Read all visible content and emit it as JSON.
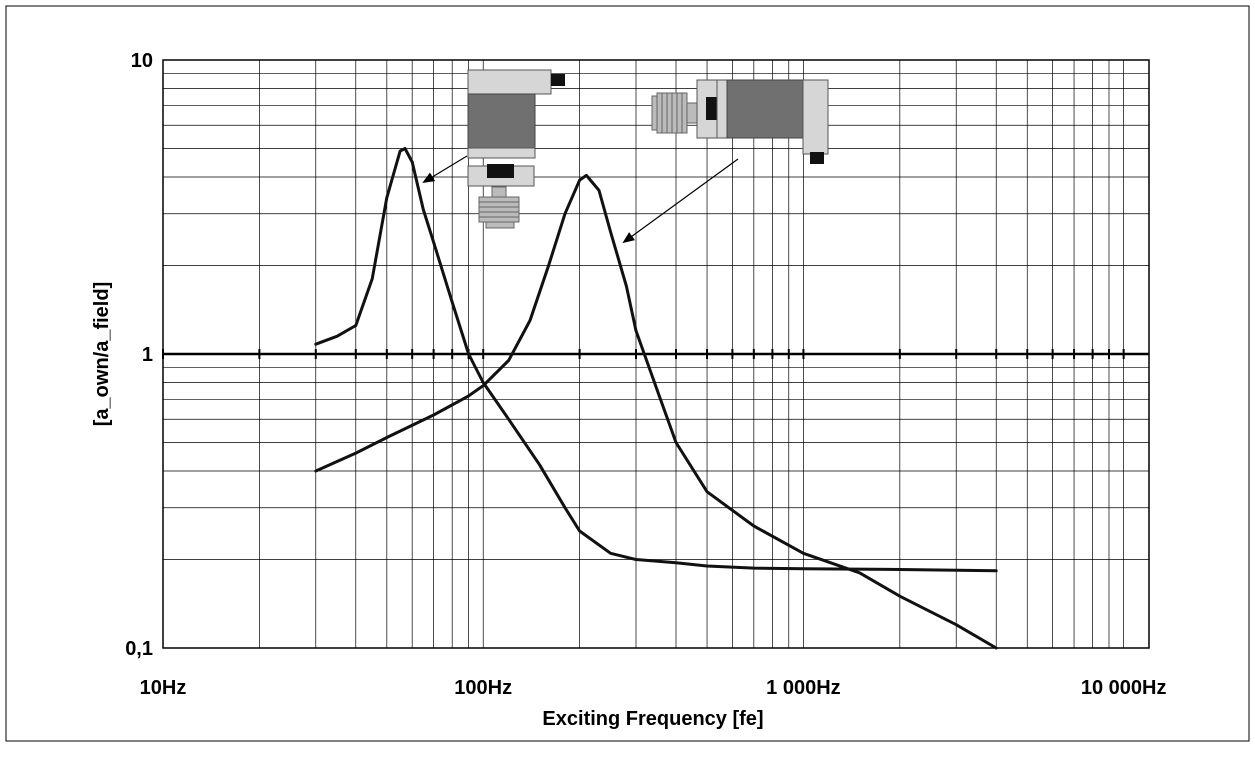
{
  "chart_data": {
    "type": "line",
    "title": "",
    "xlabel": "Exciting Frequency [fe]",
    "ylabel": "[a_own/a_field]",
    "x_scale": "log",
    "y_scale": "log",
    "xlim": [
      10,
      12000
    ],
    "ylim": [
      0.1,
      10
    ],
    "x_ticks": [
      {
        "value": 10,
        "label": "10Hz"
      },
      {
        "value": 100,
        "label": "100Hz"
      },
      {
        "value": 1000,
        "label": "1 000Hz"
      },
      {
        "value": 10000,
        "label": "10 000Hz"
      }
    ],
    "y_ticks": [
      {
        "value": 10,
        "label": "10"
      },
      {
        "value": 1,
        "label": "1"
      },
      {
        "value": 0.1,
        "label": "0,1"
      }
    ],
    "grid": true,
    "legend": "none",
    "series": [
      {
        "color": "#111111",
        "points": [
          [
            30,
            1.08
          ],
          [
            35,
            1.15
          ],
          [
            40,
            1.25
          ],
          [
            45,
            1.8
          ],
          [
            50,
            3.4
          ],
          [
            55,
            4.9
          ],
          [
            57,
            5.0
          ],
          [
            60,
            4.5
          ],
          [
            65,
            3.1
          ],
          [
            70,
            2.4
          ],
          [
            80,
            1.5
          ],
          [
            90,
            1.0
          ],
          [
            100,
            0.8
          ],
          [
            120,
            0.6
          ],
          [
            150,
            0.42
          ],
          [
            180,
            0.3
          ],
          [
            200,
            0.25
          ],
          [
            250,
            0.21
          ],
          [
            300,
            0.2
          ],
          [
            400,
            0.195
          ],
          [
            500,
            0.19
          ],
          [
            700,
            0.187
          ],
          [
            1000,
            0.186
          ],
          [
            2000,
            0.185
          ],
          [
            4000,
            0.183
          ]
        ]
      },
      {
        "color": "#111111",
        "points": [
          [
            30,
            0.4
          ],
          [
            40,
            0.46
          ],
          [
            50,
            0.52
          ],
          [
            70,
            0.62
          ],
          [
            90,
            0.72
          ],
          [
            100,
            0.78
          ],
          [
            120,
            0.95
          ],
          [
            140,
            1.3
          ],
          [
            160,
            2.0
          ],
          [
            180,
            3.0
          ],
          [
            200,
            3.9
          ],
          [
            210,
            4.05
          ],
          [
            230,
            3.6
          ],
          [
            250,
            2.6
          ],
          [
            280,
            1.7
          ],
          [
            300,
            1.2
          ],
          [
            350,
            0.75
          ],
          [
            400,
            0.5
          ],
          [
            500,
            0.34
          ],
          [
            700,
            0.26
          ],
          [
            1000,
            0.21
          ],
          [
            1500,
            0.18
          ],
          [
            2000,
            0.15
          ],
          [
            3000,
            0.12
          ],
          [
            4000,
            0.1
          ]
        ]
      }
    ]
  },
  "illustrations": [
    {
      "name": "vertical-mounted-sensor",
      "fill": "#707070",
      "light": "#d6d6d6",
      "dark": "#111111"
    },
    {
      "name": "horizontal-mounted-sensor",
      "fill": "#707070",
      "light": "#d6d6d6",
      "dark": "#111111"
    }
  ]
}
